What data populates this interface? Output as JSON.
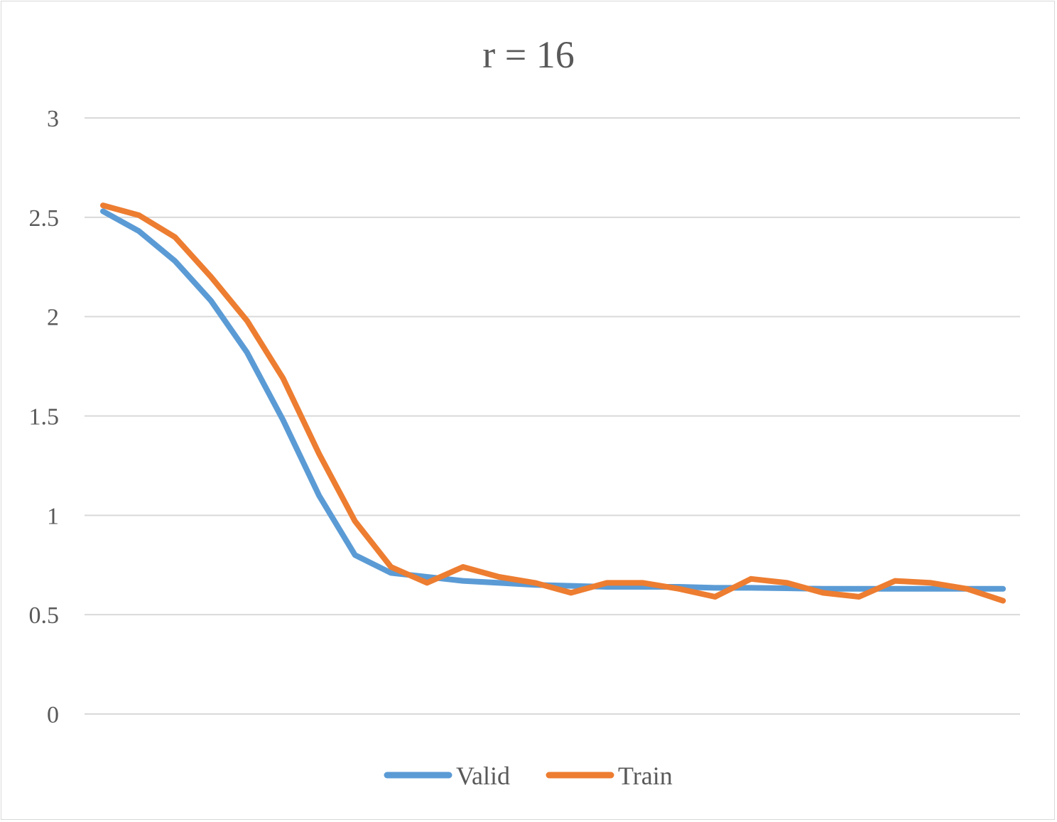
{
  "chart_data": {
    "type": "line",
    "title": "r = 16",
    "xlabel": "",
    "ylabel": "",
    "ylim": [
      0,
      3
    ],
    "yticks": [
      0,
      0.5,
      1,
      1.5,
      2,
      2.5,
      3
    ],
    "ytick_labels": [
      "0",
      "0.5",
      "1",
      "1.5",
      "2",
      "2.5",
      "3"
    ],
    "x": [
      1,
      2,
      3,
      4,
      5,
      6,
      7,
      8,
      9,
      10,
      11,
      12,
      13,
      14,
      15,
      16,
      17,
      18,
      19,
      20,
      21,
      22,
      23,
      24,
      25,
      26
    ],
    "grid": true,
    "legend_position": "bottom",
    "series": [
      {
        "name": "Valid",
        "color": "#5b9bd5",
        "values": [
          2.53,
          2.43,
          2.28,
          2.08,
          1.82,
          1.48,
          1.1,
          0.8,
          0.71,
          0.69,
          0.67,
          0.66,
          0.65,
          0.645,
          0.64,
          0.64,
          0.64,
          0.635,
          0.635,
          0.633,
          0.63,
          0.63,
          0.63,
          0.63,
          0.63,
          0.63
        ]
      },
      {
        "name": "Train",
        "color": "#ed7d31",
        "values": [
          2.56,
          2.51,
          2.4,
          2.2,
          1.98,
          1.69,
          1.31,
          0.97,
          0.74,
          0.66,
          0.74,
          0.69,
          0.66,
          0.61,
          0.66,
          0.66,
          0.63,
          0.59,
          0.68,
          0.66,
          0.61,
          0.59,
          0.67,
          0.66,
          0.63,
          0.57
        ]
      }
    ]
  }
}
